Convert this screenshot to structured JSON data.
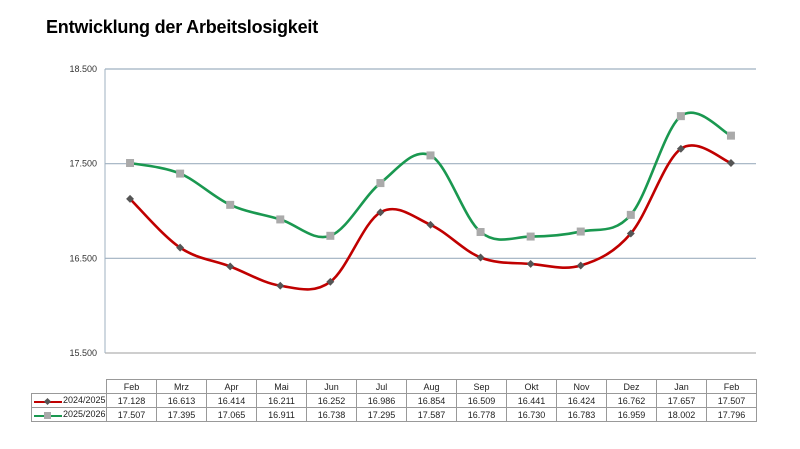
{
  "title": "Entwicklung der Arbeitslosigkeit",
  "colors": {
    "series_2024_2025": "#c00000",
    "series_2025_2026": "#1a9850",
    "gridline": "#9fb0c0",
    "marker_diamond": "#555555",
    "marker_square": "#aaaaaa"
  },
  "chart_data": {
    "type": "line",
    "title": "Entwicklung der Arbeitslosigkeit",
    "xlabel": "",
    "ylabel": "",
    "categories": [
      "Feb",
      "Mrz",
      "Apr",
      "Mai",
      "Jun",
      "Jul",
      "Aug",
      "Sep",
      "Okt",
      "Nov",
      "Dez",
      "Jan",
      "Feb"
    ],
    "series": [
      {
        "name": "2024/2025",
        "values": [
          17128,
          16613,
          16414,
          16211,
          16252,
          16986,
          16854,
          16509,
          16441,
          16424,
          16762,
          17657,
          17507
        ],
        "labels": [
          "17.128",
          "16.613",
          "16.414",
          "16.211",
          "16.252",
          "16.986",
          "16.854",
          "16.509",
          "16.441",
          "16.424",
          "16.762",
          "17.657",
          "17.507"
        ],
        "color": "#c00000",
        "marker": "diamond"
      },
      {
        "name": "2025/2026",
        "values": [
          17507,
          17395,
          17065,
          16911,
          16738,
          17295,
          17587,
          16778,
          16730,
          16783,
          16959,
          18002,
          17796
        ],
        "labels": [
          "17.507",
          "17.395",
          "17.065",
          "16.911",
          "16.738",
          "17.295",
          "17.587",
          "16.778",
          "16.730",
          "16.783",
          "16.959",
          "18.002",
          "17.796"
        ],
        "color": "#1a9850",
        "marker": "square"
      }
    ],
    "ylim": [
      15500,
      18500
    ],
    "yticks": [
      15500,
      16500,
      17500,
      18500
    ],
    "ytick_labels": [
      "15.500",
      "16.500",
      "17.500",
      "18.500"
    ],
    "grid": true,
    "legend_position": "data-table"
  }
}
